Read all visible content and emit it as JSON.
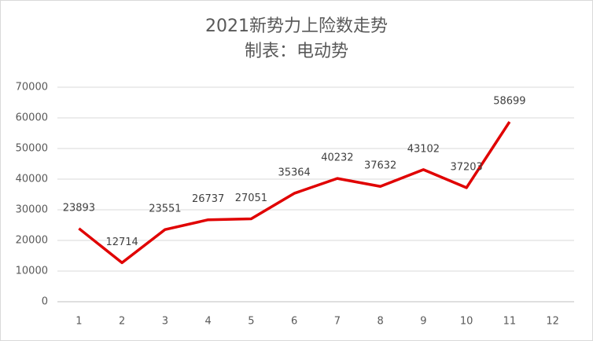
{
  "chart_data": {
    "type": "line",
    "title": "2021新势力上险数走势",
    "subtitle": "制表：电动势",
    "categories": [
      "1",
      "2",
      "3",
      "4",
      "5",
      "6",
      "7",
      "8",
      "9",
      "10",
      "11",
      "12"
    ],
    "values": [
      23893,
      12714,
      23551,
      26737,
      27051,
      35364,
      40232,
      37632,
      43102,
      37203,
      58699,
      null
    ],
    "color": "#e00000",
    "ylim": [
      0,
      70000
    ],
    "yticks": [
      0,
      10000,
      20000,
      30000,
      40000,
      50000,
      60000,
      70000
    ],
    "grid": true
  }
}
